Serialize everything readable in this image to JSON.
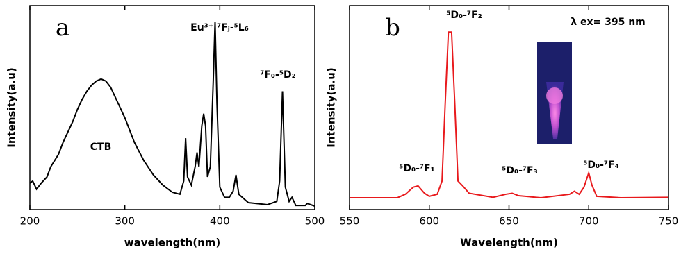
{
  "chart_data": [
    {
      "type": "line",
      "label": "a",
      "xlabel": "wavelength(nm)",
      "ylabel": "Intensity(a.u)",
      "color": "#000000",
      "xlim": [
        200,
        500
      ],
      "xticks": [
        200,
        300,
        400,
        500
      ],
      "ylim": [
        0,
        1
      ],
      "annotations": [
        "CTB",
        "Eu³⁺ ⁷Fⱼ-⁵L₆",
        "⁷F₀-⁵D₂"
      ],
      "x": [
        200,
        203,
        207,
        212,
        218,
        222,
        226,
        230,
        235,
        240,
        245,
        250,
        255,
        260,
        265,
        270,
        275,
        280,
        285,
        290,
        295,
        300,
        310,
        320,
        330,
        340,
        350,
        358,
        362,
        364,
        366,
        370,
        374,
        376,
        378,
        381,
        383,
        385,
        387,
        390,
        393,
        395,
        397,
        400,
        405,
        410,
        414,
        417,
        420,
        430,
        450,
        460,
        463,
        466,
        469,
        473,
        476,
        480,
        490,
        492,
        500
      ],
      "values": [
        0.13,
        0.14,
        0.1,
        0.13,
        0.16,
        0.21,
        0.24,
        0.27,
        0.33,
        0.38,
        0.43,
        0.49,
        0.54,
        0.58,
        0.61,
        0.63,
        0.64,
        0.63,
        0.6,
        0.55,
        0.5,
        0.45,
        0.33,
        0.24,
        0.17,
        0.12,
        0.085,
        0.075,
        0.14,
        0.35,
        0.16,
        0.12,
        0.21,
        0.28,
        0.21,
        0.41,
        0.47,
        0.41,
        0.16,
        0.21,
        0.62,
        0.92,
        0.52,
        0.11,
        0.06,
        0.06,
        0.09,
        0.17,
        0.075,
        0.034,
        0.024,
        0.04,
        0.14,
        0.58,
        0.11,
        0.04,
        0.06,
        0.02,
        0.02,
        0.03,
        0.017
      ]
    },
    {
      "type": "line",
      "label": "b",
      "xlabel": "Wavelength(nm)",
      "ylabel": "Intensity(a.u)",
      "color": "#e8191c",
      "xlim": [
        550,
        750
      ],
      "xticks": [
        550,
        600,
        650,
        700,
        750
      ],
      "ylim": [
        0,
        1
      ],
      "annotations": [
        "⁵D₀-⁷F₂",
        "λ ex= 395 nm",
        "⁵D₀-⁷F₁",
        "⁵D₀-⁷F₃",
        "⁵D₀-⁷F₄"
      ],
      "x": [
        550,
        580,
        585,
        590,
        593,
        597,
        600,
        605,
        608,
        610,
        612,
        614,
        616,
        618,
        621,
        625,
        640,
        648,
        652,
        656,
        670,
        688,
        691,
        694,
        697,
        700,
        702,
        705,
        720,
        750
      ],
      "values": [
        0.058,
        0.058,
        0.075,
        0.11,
        0.116,
        0.08,
        0.065,
        0.075,
        0.14,
        0.52,
        0.87,
        0.87,
        0.52,
        0.14,
        0.116,
        0.08,
        0.06,
        0.075,
        0.08,
        0.068,
        0.058,
        0.075,
        0.09,
        0.075,
        0.11,
        0.18,
        0.12,
        0.065,
        0.058,
        0.06
      ]
    }
  ]
}
